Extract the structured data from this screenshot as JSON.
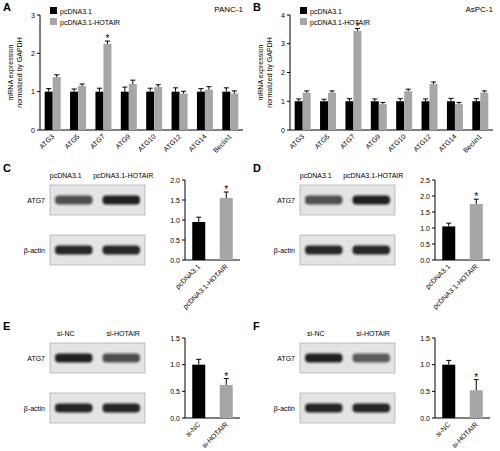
{
  "chart_data": [
    {
      "panel": "A",
      "type": "bar",
      "title": "PANC-1",
      "y_label": "mRNA expression\nnormalized by GAPDH",
      "categories": [
        "ATG3",
        "ATG5",
        "ATG7",
        "ATG9",
        "ATG10",
        "ATG12",
        "ATG14",
        "Beclin1"
      ],
      "series": [
        {
          "name": "pcDNA3.1",
          "color": "#000000",
          "values": [
            1,
            1,
            1,
            1,
            1,
            1,
            1,
            1
          ],
          "errors": [
            0.08,
            0.07,
            0.09,
            0.12,
            0.09,
            0.1,
            0.08,
            0.1
          ]
        },
        {
          "name": "pcDNA3.1-HOTAIR",
          "color": "#a6a6a6",
          "values": [
            1.38,
            1.15,
            2.25,
            1.2,
            1.12,
            0.95,
            1.05,
            0.95
          ],
          "errors": [
            0.06,
            0.05,
            0.07,
            0.1,
            0.06,
            0.06,
            0.08,
            0.07
          ]
        }
      ],
      "ylim": [
        0,
        3
      ],
      "yticks": [
        0,
        1,
        2,
        3
      ],
      "legend": "top-left",
      "annotations": [
        {
          "text": "*",
          "category": "ATG7",
          "series": "pcDNA3.1-HOTAIR"
        }
      ]
    },
    {
      "panel": "B",
      "type": "bar",
      "title": "AsPC-1",
      "y_label": "mRNA expression\nnormalized by GAPDH",
      "categories": [
        "ATG3",
        "ATG5",
        "ATG7",
        "ATG9",
        "ATG10",
        "ATG12",
        "ATG14",
        "Beclin1"
      ],
      "series": [
        {
          "name": "pcDNA3.1",
          "color": "#000000",
          "values": [
            1,
            1,
            1,
            1,
            1,
            1,
            1,
            1
          ],
          "errors": [
            0.08,
            0.07,
            0.09,
            0.08,
            0.09,
            0.08,
            0.1,
            0.09
          ]
        },
        {
          "name": "pcDNA3.1-HOTAIR",
          "color": "#a6a6a6",
          "values": [
            1.3,
            1.3,
            3.45,
            0.9,
            1.35,
            1.6,
            0.9,
            1.3
          ],
          "errors": [
            0.06,
            0.06,
            0.08,
            0.06,
            0.07,
            0.07,
            0.06,
            0.06
          ]
        }
      ],
      "ylim": [
        0,
        4
      ],
      "yticks": [
        0,
        1,
        2,
        3,
        4
      ],
      "legend": "top-left",
      "annotations": [
        {
          "text": "*",
          "category": "ATG7",
          "series": "pcDNA3.1-HOTAIR"
        }
      ]
    },
    {
      "panel": "C",
      "type": "bar",
      "categories": [
        "pcDNA3.1",
        "pcDNA3.1-HOTAIR"
      ],
      "values": [
        0.95,
        1.55
      ],
      "errors": [
        0.12,
        0.15
      ],
      "colors": [
        "#000000",
        "#a6a6a6"
      ],
      "ylim": [
        0,
        2
      ],
      "yticks": [
        {
          "value": 0,
          "label": "0.0"
        },
        0.5,
        {
          "value": 1,
          "label": "1.0"
        },
        1.5,
        {
          "value": 2,
          "label": "2.0"
        }
      ],
      "annotations": [
        {
          "text": "*",
          "category": "pcDNA3.1-HOTAIR"
        }
      ],
      "blot": {
        "lanes": [
          "pcDNA3.1",
          "pcDNA3.1-HOTAIR"
        ],
        "rows": [
          "ATG7",
          "β-actin"
        ]
      }
    },
    {
      "panel": "D",
      "type": "bar",
      "categories": [
        "pcDNA3.1",
        "pcDNA3.1-HOTAIR"
      ],
      "values": [
        1.05,
        1.75
      ],
      "errors": [
        0.1,
        0.15
      ],
      "colors": [
        "#000000",
        "#a6a6a6"
      ],
      "ylim": [
        0,
        2.5
      ],
      "yticks": [
        {
          "value": 0,
          "label": "0.0"
        },
        0.5,
        {
          "value": 1,
          "label": "1.0"
        },
        1.5,
        {
          "value": 2,
          "label": "2.0"
        },
        2.5
      ],
      "annotations": [
        {
          "text": "*",
          "category": "pcDNA3.1-HOTAIR"
        }
      ],
      "blot": {
        "lanes": [
          "pcDNA3.1",
          "pcDNA3.1-HOTAIR"
        ],
        "rows": [
          "ATG7",
          "β-actin"
        ]
      }
    },
    {
      "panel": "E",
      "type": "bar",
      "categories": [
        "si-NC",
        "si-HOTAIR"
      ],
      "values": [
        1.0,
        0.62
      ],
      "errors": [
        0.1,
        0.12
      ],
      "colors": [
        "#000000",
        "#a6a6a6"
      ],
      "ylim": [
        0,
        1.5
      ],
      "yticks": [
        {
          "value": 0,
          "label": "0.0"
        },
        0.5,
        {
          "value": 1,
          "label": "1.0"
        },
        1.5
      ],
      "annotations": [
        {
          "text": "*",
          "category": "si-HOTAIR"
        }
      ],
      "blot": {
        "lanes": [
          "si-NC",
          "si-HOTAIR"
        ],
        "rows": [
          "ATG7",
          "β-actin"
        ]
      }
    },
    {
      "panel": "F",
      "type": "bar",
      "categories": [
        "si-NC",
        "si-HOTAIR"
      ],
      "values": [
        1.0,
        0.52
      ],
      "errors": [
        0.08,
        0.2
      ],
      "colors": [
        "#000000",
        "#a6a6a6"
      ],
      "ylim": [
        0,
        1.5
      ],
      "yticks": [
        {
          "value": 0,
          "label": "0.0"
        },
        0.5,
        {
          "value": 1,
          "label": "1.0"
        },
        1.5
      ],
      "annotations": [
        {
          "text": "*",
          "category": "si-HOTAIR"
        }
      ],
      "blot": {
        "lanes": [
          "si-NC",
          "si-HOTAIR"
        ],
        "rows": [
          "ATG7",
          "β-actin"
        ]
      }
    }
  ]
}
